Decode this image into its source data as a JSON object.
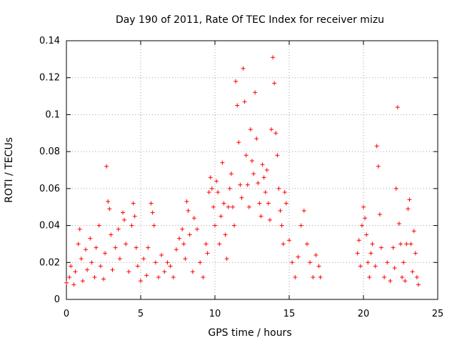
{
  "chart_data": {
    "type": "scatter",
    "title": "Day 190 of 2011, Rate Of TEC Index for receiver mizu",
    "xlabel": "GPS time / hours",
    "ylabel": "ROTI / TECUs",
    "xlim": [
      0,
      25
    ],
    "ylim": [
      0,
      0.14
    ],
    "x_ticks": [
      0,
      5,
      10,
      15,
      20,
      25
    ],
    "y_ticks": [
      0,
      0.02,
      0.04,
      0.06,
      0.08,
      0.1,
      0.12,
      0.14
    ],
    "x_tick_labels": [
      "0",
      "5",
      "10",
      "15",
      "20",
      "25"
    ],
    "y_tick_labels": [
      "0",
      "0.02",
      "0.04",
      "0.06",
      "0.08",
      "0.1",
      "0.12",
      "0.14"
    ],
    "grid": true,
    "marker": "+",
    "marker_color": "#ff0000",
    "series": [
      {
        "name": "ROTI",
        "points": [
          [
            0.0,
            0.009
          ],
          [
            0.2,
            0.012
          ],
          [
            0.3,
            0.018
          ],
          [
            0.5,
            0.008
          ],
          [
            0.6,
            0.015
          ],
          [
            0.8,
            0.03
          ],
          [
            0.9,
            0.038
          ],
          [
            1.0,
            0.022
          ],
          [
            1.1,
            0.01
          ],
          [
            1.3,
            0.027
          ],
          [
            1.4,
            0.016
          ],
          [
            1.6,
            0.033
          ],
          [
            1.7,
            0.02
          ],
          [
            1.9,
            0.012
          ],
          [
            2.0,
            0.028
          ],
          [
            2.2,
            0.04
          ],
          [
            2.3,
            0.018
          ],
          [
            2.5,
            0.011
          ],
          [
            2.6,
            0.025
          ],
          [
            2.7,
            0.072
          ],
          [
            2.8,
            0.053
          ],
          [
            2.9,
            0.049
          ],
          [
            3.0,
            0.035
          ],
          [
            3.1,
            0.016
          ],
          [
            3.3,
            0.028
          ],
          [
            3.5,
            0.038
          ],
          [
            3.6,
            0.022
          ],
          [
            3.8,
            0.047
          ],
          [
            3.9,
            0.043
          ],
          [
            4.0,
            0.03
          ],
          [
            4.2,
            0.015
          ],
          [
            4.4,
            0.04
          ],
          [
            4.5,
            0.052
          ],
          [
            4.6,
            0.045
          ],
          [
            4.7,
            0.028
          ],
          [
            4.8,
            0.018
          ],
          [
            5.0,
            0.01
          ],
          [
            5.2,
            0.022
          ],
          [
            5.4,
            0.013
          ],
          [
            5.5,
            0.028
          ],
          [
            5.7,
            0.052
          ],
          [
            5.8,
            0.047
          ],
          [
            5.9,
            0.04
          ],
          [
            6.0,
            0.02
          ],
          [
            6.2,
            0.012
          ],
          [
            6.4,
            0.024
          ],
          [
            6.6,
            0.015
          ],
          [
            6.8,
            0.02
          ],
          [
            7.0,
            0.018
          ],
          [
            7.2,
            0.012
          ],
          [
            7.4,
            0.027
          ],
          [
            7.6,
            0.033
          ],
          [
            7.8,
            0.038
          ],
          [
            7.9,
            0.03
          ],
          [
            8.0,
            0.022
          ],
          [
            8.1,
            0.053
          ],
          [
            8.2,
            0.048
          ],
          [
            8.3,
            0.035
          ],
          [
            8.5,
            0.015
          ],
          [
            8.6,
            0.044
          ],
          [
            8.8,
            0.038
          ],
          [
            9.0,
            0.02
          ],
          [
            9.2,
            0.012
          ],
          [
            9.4,
            0.03
          ],
          [
            9.5,
            0.025
          ],
          [
            9.6,
            0.058
          ],
          [
            9.7,
            0.066
          ],
          [
            9.8,
            0.06
          ],
          [
            9.9,
            0.05
          ],
          [
            10.0,
            0.04
          ],
          [
            10.1,
            0.064
          ],
          [
            10.2,
            0.058
          ],
          [
            10.3,
            0.03
          ],
          [
            10.4,
            0.045
          ],
          [
            10.5,
            0.074
          ],
          [
            10.6,
            0.052
          ],
          [
            10.7,
            0.035
          ],
          [
            10.8,
            0.022
          ],
          [
            10.9,
            0.05
          ],
          [
            11.0,
            0.06
          ],
          [
            11.1,
            0.068
          ],
          [
            11.2,
            0.05
          ],
          [
            11.3,
            0.04
          ],
          [
            11.4,
            0.118
          ],
          [
            11.5,
            0.105
          ],
          [
            11.6,
            0.085
          ],
          [
            11.7,
            0.062
          ],
          [
            11.8,
            0.055
          ],
          [
            11.9,
            0.125
          ],
          [
            12.0,
            0.107
          ],
          [
            12.1,
            0.078
          ],
          [
            12.2,
            0.062
          ],
          [
            12.3,
            0.05
          ],
          [
            12.4,
            0.092
          ],
          [
            12.5,
            0.075
          ],
          [
            12.6,
            0.068
          ],
          [
            12.7,
            0.112
          ],
          [
            12.8,
            0.087
          ],
          [
            12.9,
            0.063
          ],
          [
            13.0,
            0.052
          ],
          [
            13.1,
            0.045
          ],
          [
            13.2,
            0.073
          ],
          [
            13.3,
            0.066
          ],
          [
            13.4,
            0.058
          ],
          [
            13.5,
            0.07
          ],
          [
            13.6,
            0.052
          ],
          [
            13.7,
            0.043
          ],
          [
            13.8,
            0.092
          ],
          [
            13.9,
            0.131
          ],
          [
            14.0,
            0.117
          ],
          [
            14.1,
            0.09
          ],
          [
            14.2,
            0.078
          ],
          [
            14.3,
            0.06
          ],
          [
            14.4,
            0.048
          ],
          [
            14.5,
            0.04
          ],
          [
            14.6,
            0.03
          ],
          [
            14.7,
            0.058
          ],
          [
            14.8,
            0.052
          ],
          [
            15.0,
            0.032
          ],
          [
            15.2,
            0.02
          ],
          [
            15.4,
            0.012
          ],
          [
            15.6,
            0.023
          ],
          [
            15.8,
            0.04
          ],
          [
            16.0,
            0.048
          ],
          [
            16.2,
            0.03
          ],
          [
            16.4,
            0.02
          ],
          [
            16.6,
            0.012
          ],
          [
            16.8,
            0.024
          ],
          [
            17.0,
            0.018
          ],
          [
            17.1,
            0.012
          ],
          [
            19.6,
            0.025
          ],
          [
            19.7,
            0.032
          ],
          [
            19.8,
            0.018
          ],
          [
            19.9,
            0.04
          ],
          [
            20.0,
            0.05
          ],
          [
            20.1,
            0.044
          ],
          [
            20.2,
            0.035
          ],
          [
            20.3,
            0.02
          ],
          [
            20.4,
            0.012
          ],
          [
            20.5,
            0.025
          ],
          [
            20.6,
            0.03
          ],
          [
            20.8,
            0.018
          ],
          [
            20.9,
            0.083
          ],
          [
            21.0,
            0.072
          ],
          [
            21.1,
            0.046
          ],
          [
            21.2,
            0.028
          ],
          [
            21.4,
            0.012
          ],
          [
            21.6,
            0.02
          ],
          [
            21.8,
            0.01
          ],
          [
            22.0,
            0.028
          ],
          [
            22.1,
            0.017
          ],
          [
            22.2,
            0.06
          ],
          [
            22.3,
            0.104
          ],
          [
            22.4,
            0.041
          ],
          [
            22.5,
            0.03
          ],
          [
            22.6,
            0.012
          ],
          [
            22.7,
            0.02
          ],
          [
            22.8,
            0.01
          ],
          [
            22.9,
            0.03
          ],
          [
            23.0,
            0.049
          ],
          [
            23.1,
            0.054
          ],
          [
            23.2,
            0.03
          ],
          [
            23.3,
            0.015
          ],
          [
            23.4,
            0.037
          ],
          [
            23.5,
            0.025
          ],
          [
            23.6,
            0.012
          ],
          [
            23.7,
            0.008
          ]
        ]
      }
    ]
  }
}
